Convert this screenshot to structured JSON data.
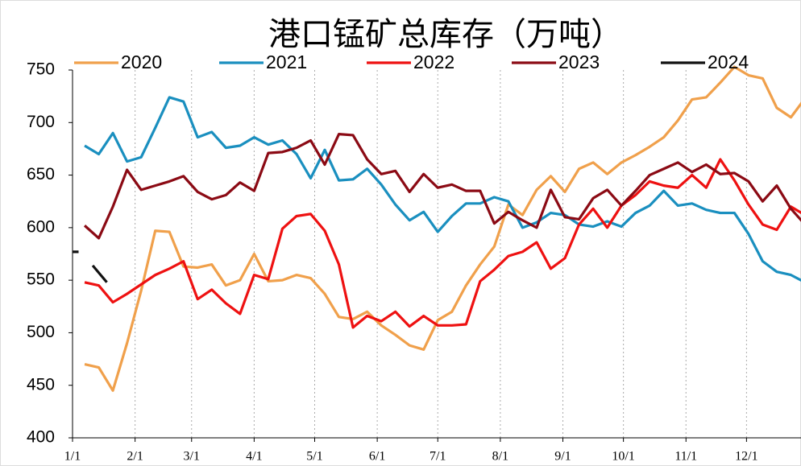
{
  "chart_data": {
    "type": "line",
    "title": "港口锰矿总库存（万吨）",
    "x": [
      7,
      14,
      21,
      28,
      35,
      42,
      49,
      56,
      63,
      70,
      77,
      84,
      91,
      98,
      105,
      112,
      119,
      126,
      133,
      140,
      147,
      154,
      161,
      168,
      175,
      182,
      189,
      196,
      203,
      210,
      217,
      224,
      231,
      238,
      245,
      252,
      259,
      266,
      273,
      280,
      287,
      294,
      301,
      308,
      315,
      322,
      329,
      336,
      343,
      350,
      357,
      364
    ],
    "xlim": [
      1,
      362
    ],
    "xticks": [
      {
        "value": 1,
        "label": "1/1"
      },
      {
        "value": 32,
        "label": "2/1"
      },
      {
        "value": 60,
        "label": "3/1"
      },
      {
        "value": 91,
        "label": "4/1"
      },
      {
        "value": 121,
        "label": "5/1"
      },
      {
        "value": 152,
        "label": "6/1"
      },
      {
        "value": 182,
        "label": "7/1"
      },
      {
        "value": 213,
        "label": "8/1"
      },
      {
        "value": 244,
        "label": "9/1"
      },
      {
        "value": 274,
        "label": "10/1"
      },
      {
        "value": 305,
        "label": "11/1"
      },
      {
        "value": 335,
        "label": "12/1"
      }
    ],
    "ylim": [
      400,
      750
    ],
    "yticks": [
      400,
      450,
      500,
      550,
      600,
      650,
      700,
      750
    ],
    "grid": true,
    "series": [
      {
        "name": "2020",
        "color": "#f0a04b",
        "values": [
          470,
          467,
          445,
          490,
          540,
          597,
          596,
          563,
          562,
          565,
          545,
          550,
          575,
          549,
          550,
          555,
          552,
          537,
          515,
          513,
          520,
          507,
          498,
          488,
          484,
          512,
          520,
          545,
          565,
          582,
          622,
          612,
          636,
          649,
          634,
          656,
          662,
          651,
          662,
          669,
          677,
          686,
          702,
          722,
          724,
          738,
          753,
          745,
          742,
          714,
          705,
          723
        ]
      },
      {
        "name": "2021",
        "color": "#1a8fbf",
        "values": [
          678,
          670,
          690,
          663,
          667,
          695,
          724,
          720,
          686,
          691,
          676,
          678,
          686,
          679,
          683,
          670,
          647,
          674,
          645,
          646,
          656,
          641,
          622,
          607,
          615,
          596,
          611,
          623,
          623,
          629,
          625,
          600,
          605,
          614,
          612,
          603,
          601,
          606,
          601,
          614,
          621,
          635,
          621,
          623,
          617,
          614,
          614,
          594,
          568,
          558,
          555,
          548
        ]
      },
      {
        "name": "2022",
        "color": "#ee1111",
        "values": [
          548,
          545,
          529,
          537,
          546,
          555,
          561,
          568,
          532,
          541,
          528,
          518,
          555,
          551,
          599,
          611,
          613,
          597,
          565,
          505,
          516,
          511,
          520,
          506,
          516,
          507,
          507,
          508,
          549,
          560,
          573,
          577,
          586,
          561,
          571,
          603,
          618,
          600,
          621,
          631,
          644,
          640,
          638,
          650,
          638,
          665,
          645,
          622,
          603,
          598,
          620,
          612
        ]
      },
      {
        "name": "2023",
        "color": "#8b0a14",
        "values": [
          602,
          590,
          620,
          655,
          636,
          640,
          644,
          649,
          634,
          627,
          631,
          643,
          635,
          671,
          672,
          676,
          683,
          660,
          689,
          688,
          665,
          651,
          654,
          634,
          651,
          638,
          641,
          635,
          635,
          604,
          615,
          607,
          600,
          636,
          610,
          608,
          628,
          636,
          621,
          635,
          650,
          656,
          662,
          653,
          660,
          651,
          652,
          644,
          625,
          640,
          618,
          603
        ]
      },
      {
        "name": "2024",
        "color": "#111111",
        "x": [
          1,
          4,
          8,
          11,
          18
        ],
        "values": [
          577,
          577,
          null,
          564,
          548
        ]
      }
    ]
  }
}
